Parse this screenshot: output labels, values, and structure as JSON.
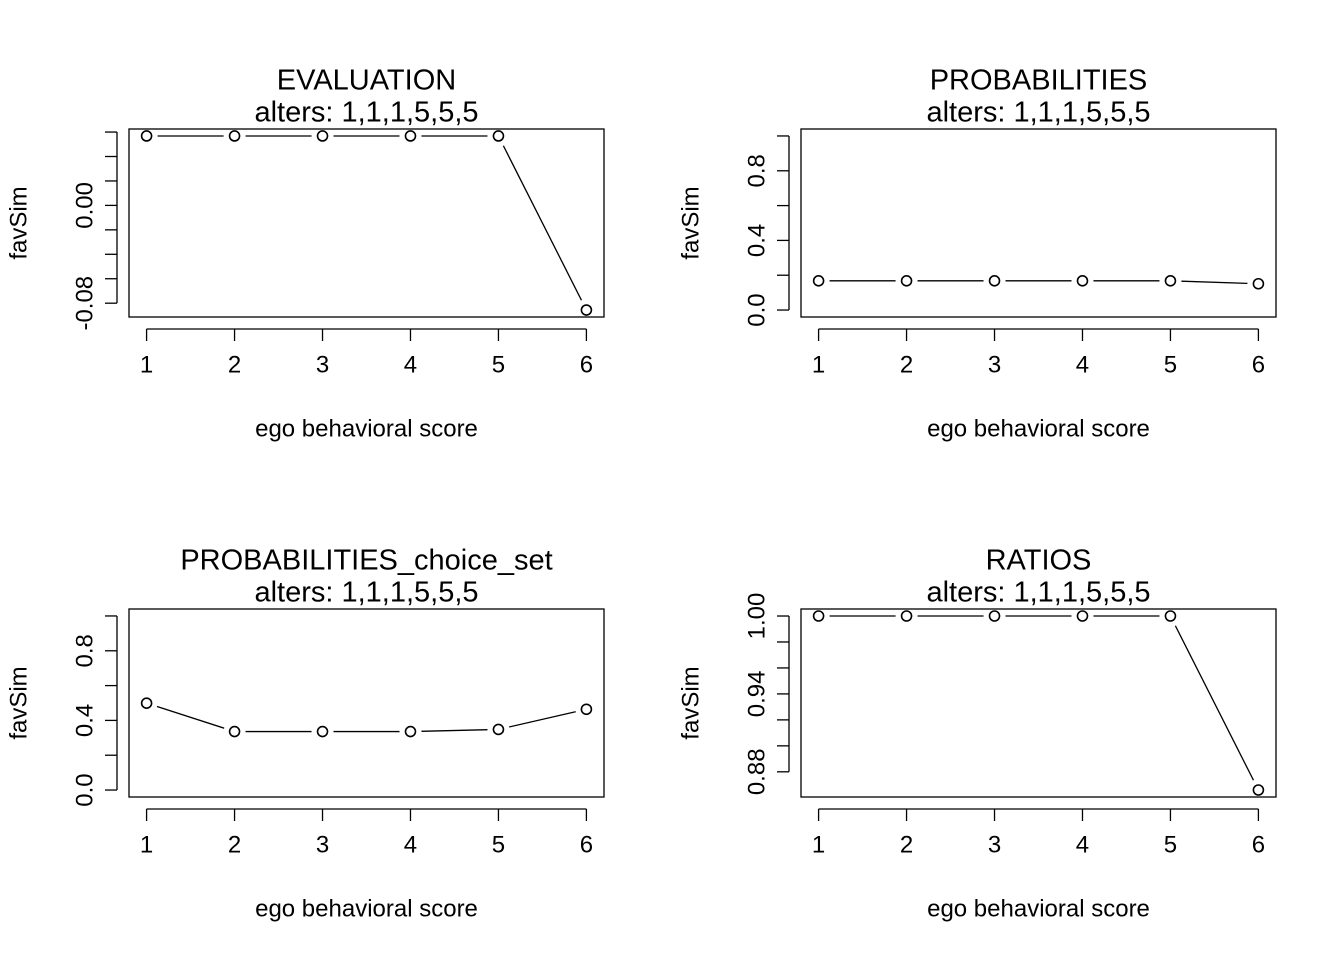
{
  "chart_data": [
    {
      "type": "line",
      "title": "EVALUATION",
      "subtitle": "alters: 1,1,1,5,5,5",
      "xlabel": "ego behavioral score",
      "ylabel": "favSim",
      "x": [
        1,
        2,
        3,
        4,
        5,
        6
      ],
      "values": [
        0.0568,
        0.0568,
        0.0568,
        0.0568,
        0.0568,
        -0.0856
      ],
      "xlim": [
        0.8,
        6.2
      ],
      "xticks": [
        1,
        2,
        3,
        4,
        5,
        6
      ],
      "ylim": [
        -0.0913,
        0.0625
      ],
      "yticks": [
        -0.08,
        {
          "value": 0,
          "label": "0.00"
        }
      ],
      "yminor_ticks": [
        -0.06,
        -0.04,
        -0.02,
        0.02,
        0.04,
        0.06
      ],
      "color": "#000000"
    },
    {
      "type": "line",
      "title": "PROBABILITIES",
      "subtitle": "alters: 1,1,1,5,5,5",
      "xlabel": "ego behavioral score",
      "ylabel": "favSim",
      "x": [
        1,
        2,
        3,
        4,
        5,
        6
      ],
      "values": [
        0.168,
        0.168,
        0.168,
        0.168,
        0.168,
        0.151
      ],
      "xlim": [
        0.8,
        6.2
      ],
      "xticks": [
        1,
        2,
        3,
        4,
        5,
        6
      ],
      "ylim": [
        -0.04,
        1.04
      ],
      "yticks": [
        {
          "value": 0,
          "label": "0.0"
        },
        0.4,
        0.8
      ],
      "yminor_ticks": [
        0.2,
        0.6,
        1.0
      ],
      "color": "#000000"
    },
    {
      "type": "line",
      "title": "PROBABILITIES_choice_set",
      "subtitle": "alters: 1,1,1,5,5,5",
      "xlabel": "ego behavioral score",
      "ylabel": "favSim",
      "x": [
        1,
        2,
        3,
        4,
        5,
        6
      ],
      "values": [
        0.499,
        0.336,
        0.336,
        0.336,
        0.348,
        0.464
      ],
      "xlim": [
        0.8,
        6.2
      ],
      "xticks": [
        1,
        2,
        3,
        4,
        5,
        6
      ],
      "ylim": [
        -0.04,
        1.04
      ],
      "yticks": [
        {
          "value": 0,
          "label": "0.0"
        },
        0.4,
        0.8
      ],
      "yminor_ticks": [
        0.2,
        0.6,
        1.0
      ],
      "color": "#000000"
    },
    {
      "type": "line",
      "title": "RATIOS",
      "subtitle": "alters: 1,1,1,5,5,5",
      "xlabel": "ego behavioral score",
      "ylabel": "favSim",
      "x": [
        1,
        2,
        3,
        4,
        5,
        6
      ],
      "values": [
        1.0,
        1.0,
        1.0,
        1.0,
        1.0,
        0.866
      ],
      "xlim": [
        0.8,
        6.2
      ],
      "xticks": [
        1,
        2,
        3,
        4,
        5,
        6
      ],
      "ylim": [
        0.8606,
        1.0054
      ],
      "yticks": [
        0.88,
        0.94,
        {
          "value": 1,
          "label": "1.00"
        }
      ],
      "yminor_ticks": [
        0.9,
        0.92,
        0.96,
        0.98
      ],
      "color": "#000000"
    }
  ]
}
